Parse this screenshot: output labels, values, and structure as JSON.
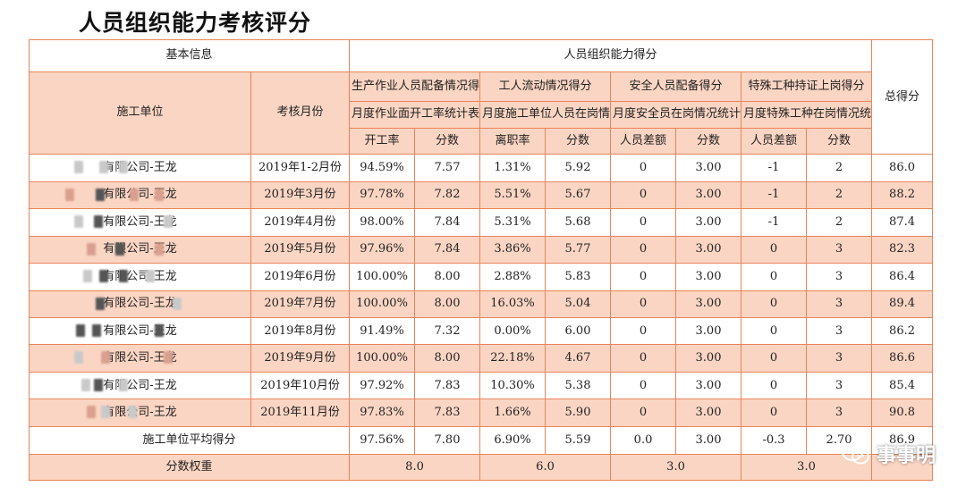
{
  "title": "人员组织能力考核评分",
  "headers": {
    "basic_info": "基本信息",
    "org_score": "人员组织能力得分",
    "total": "总得分",
    "unit": "施工单位",
    "month": "考核月份",
    "groups": [
      {
        "name": "生产作业人员配备情况得分",
        "sheet": "月度作业面开工率统计表",
        "col1": "开工率",
        "col2": "分数"
      },
      {
        "name": "工人流动情况得分",
        "sheet": "月度施工单位人员在岗情况统计表",
        "col1": "离职率",
        "col2": "分数"
      },
      {
        "name": "安全人员配备得分",
        "sheet": "月度安全员在岗情况统计表",
        "col1": "人员差额",
        "col2": "分数"
      },
      {
        "name": "特殊工种持证上岗得分",
        "sheet": "月度特殊工种在岗情况统计表",
        "col1": "人员差额",
        "col2": "分数"
      }
    ]
  },
  "rows": [
    {
      "unit": "有限公司-王龙",
      "month": "2019年1-2月份",
      "v": [
        "94.59%",
        "7.57",
        "1.31%",
        "5.92",
        "0",
        "3.00",
        "-1",
        "2",
        "86.0"
      ]
    },
    {
      "unit": "有限公司-王龙",
      "month": "2019年3月份",
      "v": [
        "97.78%",
        "7.82",
        "5.51%",
        "5.67",
        "0",
        "3.00",
        "-1",
        "2",
        "88.2"
      ]
    },
    {
      "unit": "有限公司-王龙",
      "month": "2019年4月份",
      "v": [
        "98.00%",
        "7.84",
        "5.31%",
        "5.68",
        "0",
        "3.00",
        "-1",
        "2",
        "87.4"
      ]
    },
    {
      "unit": "有限公司-王龙",
      "month": "2019年5月份",
      "v": [
        "97.96%",
        "7.84",
        "3.86%",
        "5.77",
        "0",
        "3.00",
        "0",
        "3",
        "82.3"
      ]
    },
    {
      "unit": "有限公司-王龙",
      "month": "2019年6月份",
      "v": [
        "100.00%",
        "8.00",
        "2.88%",
        "5.83",
        "0",
        "3.00",
        "0",
        "3",
        "86.4"
      ]
    },
    {
      "unit": "有限公司-王龙",
      "month": "2019年7月份",
      "v": [
        "100.00%",
        "8.00",
        "16.03%",
        "5.04",
        "0",
        "3.00",
        "0",
        "3",
        "89.4"
      ]
    },
    {
      "unit": "有限公司-王龙",
      "month": "2019年8月份",
      "v": [
        "91.49%",
        "7.32",
        "0.00%",
        "6.00",
        "0",
        "3.00",
        "0",
        "3",
        "86.2"
      ]
    },
    {
      "unit": "有限公司-王龙",
      "month": "2019年9月份",
      "v": [
        "100.00%",
        "8.00",
        "22.18%",
        "4.67",
        "0",
        "3.00",
        "0",
        "3",
        "86.6"
      ]
    },
    {
      "unit": "有限公司-王龙",
      "month": "2019年10月份",
      "v": [
        "97.92%",
        "7.83",
        "10.30%",
        "5.38",
        "0",
        "3.00",
        "0",
        "3",
        "85.4"
      ]
    },
    {
      "unit": "有限公司-王龙",
      "month": "2019年11月份",
      "v": [
        "97.83%",
        "7.83",
        "1.66%",
        "5.90",
        "0",
        "3.00",
        "0",
        "3",
        "90.8"
      ]
    }
  ],
  "average": {
    "label": "施工单位平均得分",
    "v": [
      "97.56%",
      "7.80",
      "6.90%",
      "5.59",
      "0.0",
      "3.00",
      "-0.3",
      "2.70",
      "86.9"
    ]
  },
  "weights": {
    "label": "分数权重",
    "v": [
      "8.0",
      "6.0",
      "3.0",
      "3.0"
    ]
  },
  "watermark": {
    "text": "事事明",
    "icon": "wechat-icon"
  },
  "colors": {
    "border": "#e8845a",
    "band": "#fbd5c3"
  }
}
